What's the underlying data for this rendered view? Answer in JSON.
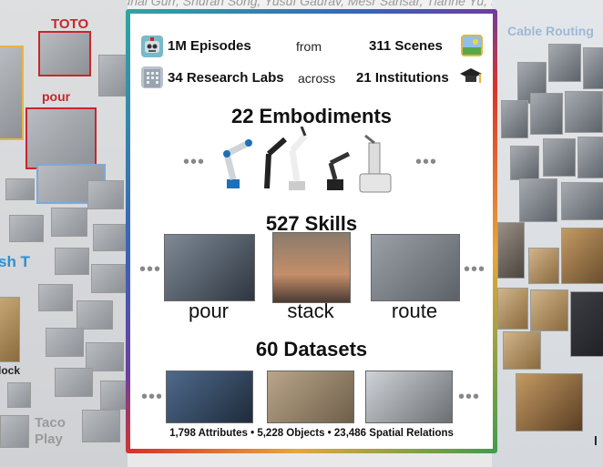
{
  "top_text": "Vuong, Tete Zhang, Kunal Gurr, Shuran Song, Yusuf Gaurav, Mesr Sansar, Tianhe Yu, Mo...",
  "left_labels": {
    "toto": "TOTO",
    "pour": "pour",
    "push_t": "sh T",
    "block": "lock",
    "taco": "Taco",
    "play": "Play"
  },
  "right_labels": {
    "cable_routing": "Cable Routing",
    "letter": "l"
  },
  "stats": {
    "episodes": "1M Episodes",
    "from": "from",
    "scenes": "311 Scenes",
    "labs": "34 Research Labs",
    "across": "across",
    "institutions": "21 Institutions"
  },
  "embodiments_title": "22 Embodiments",
  "skills_title": "527 Skills",
  "skills": [
    "pour",
    "stack",
    "route"
  ],
  "datasets_title": "60 Datasets",
  "bottom_line": "1,798 Attributes  •  5,228 Objects  •  23,486 Spatial Relations",
  "ellipsis": "•••",
  "colors": {
    "red_label": "#c8262c",
    "blue_label": "#2a8fd6",
    "cable_label": "#9cb8d8",
    "taco_label": "#9a9a9a"
  }
}
